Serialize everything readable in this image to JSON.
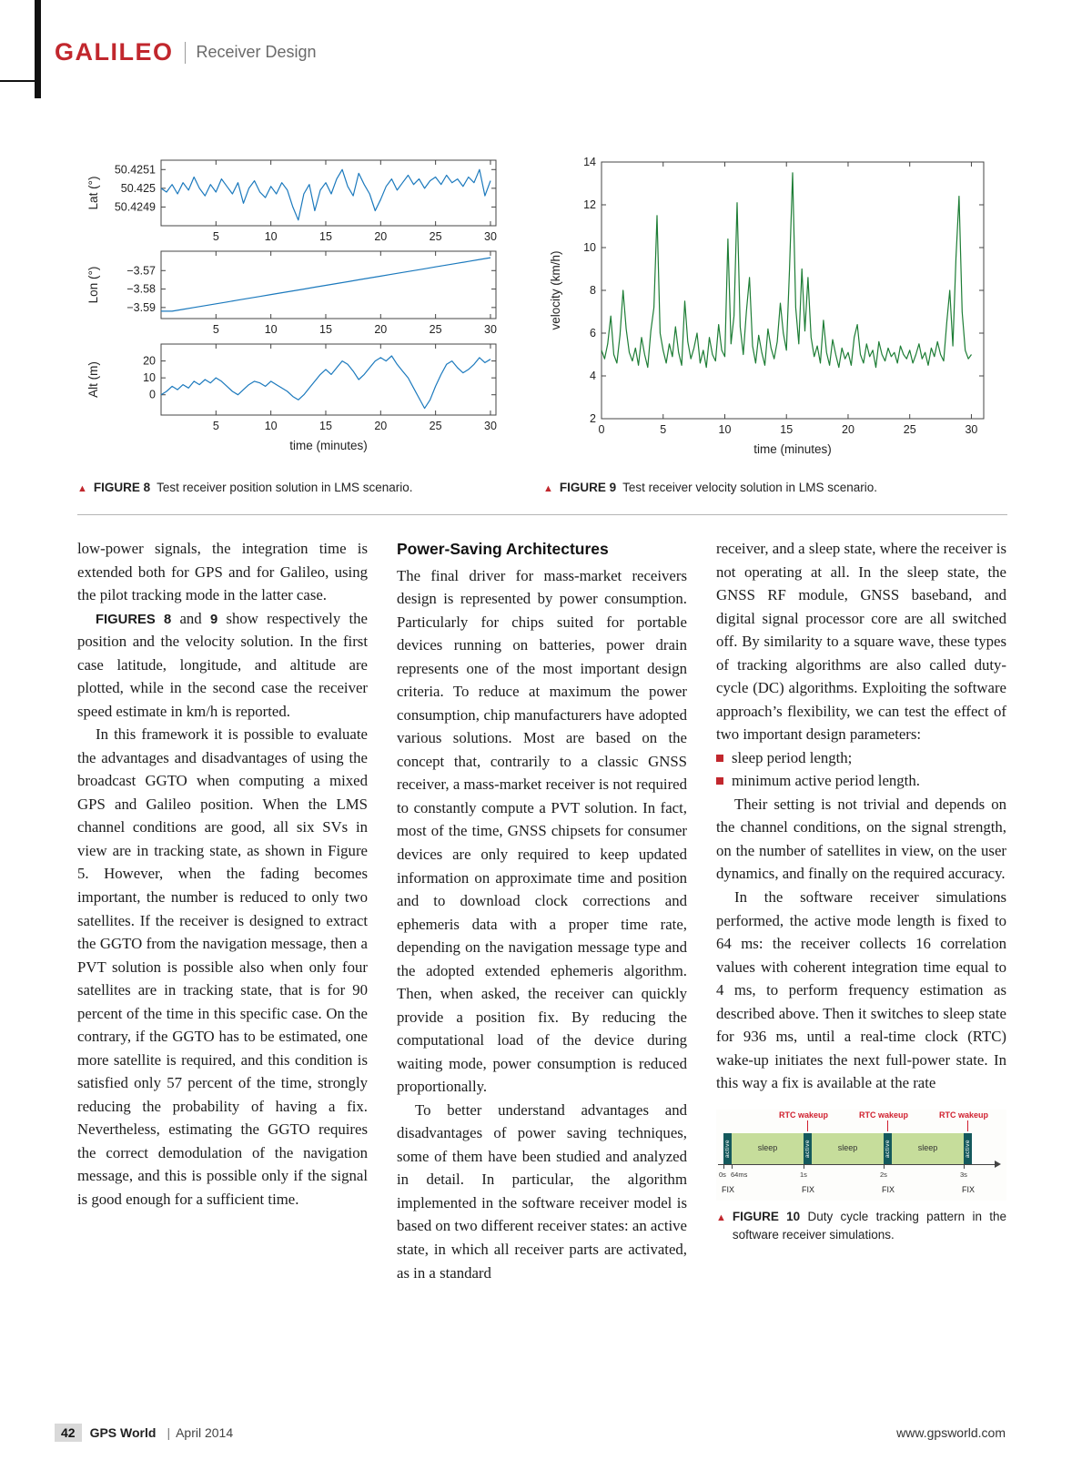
{
  "colors": {
    "accent_red": "#c1272d",
    "rtc": "#d01f2e",
    "sleep": "#c6dd9b",
    "active": "#14595c"
  },
  "header": {
    "brand": "GALILEO",
    "section": "Receiver Design"
  },
  "figures": {
    "fig8_label": "FIGURE 8",
    "fig8_text": "Test receiver position solution in LMS scenario.",
    "fig9_label": "FIGURE 9",
    "fig9_text": "Test receiver velocity solution in LMS scenario.",
    "fig10_label": "FIGURE 10",
    "fig10_text": "Duty cycle tracking pattern in the software receiver simulations."
  },
  "fig10": {
    "colors": {
      "rtc": "#d01f2e",
      "sleep": "#c6dd9b",
      "active": "#14595c"
    },
    "rtc_labels": [
      "RTC wakeup",
      "RTC wakeup",
      "RTC wakeup"
    ],
    "sleep_label": "sleep",
    "active_label": "active",
    "tick_labels": [
      "0s",
      "64ms",
      "1s",
      "2s",
      "3s"
    ],
    "fix_label": "FIX"
  },
  "article": {
    "heading2": "Power-Saving Architectures",
    "col1": {
      "p1": "low-power signals, the integration time is extended both for GPS and for Galileo, using the pilot tracking mode in the latter case.",
      "p2_ref_a": "FIGURES 8",
      "p2_and": " and ",
      "p2_ref_b": "9",
      "p2_rest": " show respectively the position and the velocity solution. In the first case latitude, longitude, and altitude are plotted, while in the second case the receiver speed estimate in km/h is reported.",
      "p3": "In this framework it is possible to evaluate the advantages and disadvantages of using the broadcast GGTO when computing a mixed GPS and Galileo position. When the LMS channel conditions are good, all six SVs in view are in tracking state, as shown in Figure 5. However, when the fading becomes important, the number is reduced to only two satellites. If the receiver is designed to extract the GGTO from the navigation message, then a PVT solution is possible also when only four satellites are in tracking state, that is for 90 percent of the time in this specific case. On the contrary, if the GGTO has to be estimated, one more satellite is required, and this condition is satisfied only 57 percent of the time, strongly reducing the probability of having a fix. Nevertheless, estimating the GGTO requires the correct demodulation of the navigation message, and this is possible only if the signal is good enough for a sufficient time."
    },
    "col2": {
      "p1": "The final driver for mass-market receivers design is represented by power consumption. Particularly for chips suited for portable devices running on batteries, power drain represents one of the most important design criteria. To reduce at maximum the power consumption, chip manufacturers have adopted various solutions. Most are based on the concept that, contrarily to a classic GNSS receiver, a mass-market receiver is not required to constantly compute a PVT solution. In fact, most of the time, GNSS chipsets for consumer devices are only required to keep updated information on approximate time and position and to download clock corrections and ephemeris data with a proper time rate, depending on the navigation message type and the adopted extended ephemeris algorithm. Then, when asked, the receiver can quickly provide a position fix. By reducing the computational load of the device during waiting mode, power consumption is reduced proportionally.",
      "p2": "To better understand advantages and disadvantages of power saving techniques, some of them have been studied and analyzed in detail. In particular, the algorithm implemented in the software receiver model is based on two different receiver states: an active state, in which all receiver parts are activated, as in a standard"
    },
    "col3": {
      "p1": "receiver, and a sleep state, where the receiver is not operating at all. In the sleep state, the GNSS RF module, GNSS baseband, and digital signal processor core are all switched off. By similarity to a square wave, these types of tracking algorithms are also called duty-cycle (DC) algorithms. Exploiting the software approach’s flexibility, we can test the effect of two important design parameters:",
      "bullets": [
        "sleep period length;",
        "minimum active period length."
      ],
      "p2": "Their setting is not trivial and depends on the channel conditions, on the signal strength, on the number of satellites in view, on the user dynamics, and finally on the required accuracy.",
      "p3": "In the software receiver simulations performed, the active mode length is fixed to 64 ms: the receiver collects 16 correlation values with coherent integration time equal to 4 ms, to perform frequency estimation as described above. Then it switches to sleep state for 936 ms, until a real-time clock (RTC) wake-up initiates the next full-power state. In this way a fix is available at the rate"
    }
  },
  "footer": {
    "page_number": "42",
    "magazine": "GPS World",
    "separator": "|",
    "issue": "April 2014",
    "website": "www.gpsworld.com"
  },
  "chart_data": [
    {
      "id": "fig8-lat",
      "type": "line",
      "color": "#1b79bd",
      "ylabel": "Lat (°)",
      "xlabel": "",
      "xlim": [
        0,
        30.5
      ],
      "ylim": [
        50.4248,
        50.42515
      ],
      "xticks": [
        5,
        10,
        15,
        20,
        25,
        30
      ],
      "yticks": [
        50.4249,
        50.425,
        50.4251
      ],
      "ytick_labels": [
        "50.4249",
        "50.425",
        "50.4251"
      ],
      "x0": 0,
      "dx": 0.5,
      "values": [
        50.425,
        50.42498,
        50.42502,
        50.42497,
        50.42503,
        50.42499,
        50.42506,
        50.425,
        50.42496,
        50.42502,
        50.42498,
        50.42505,
        50.42501,
        50.42497,
        50.42503,
        50.42492,
        50.425,
        50.42504,
        50.42498,
        50.42495,
        50.42501,
        50.42497,
        50.42503,
        50.42499,
        50.4249,
        50.42483,
        50.42497,
        50.42502,
        50.42488,
        50.42499,
        50.42503,
        50.42497,
        50.42505,
        50.4251,
        50.42501,
        50.42496,
        50.42508,
        50.42502,
        50.42497,
        50.42488,
        50.42494,
        50.42501,
        50.42505,
        50.42499,
        50.42503,
        50.42507,
        50.42502,
        50.42505,
        50.425,
        50.42504,
        50.42506,
        50.42502,
        50.42507,
        50.42503,
        50.42505,
        50.42501,
        50.42506,
        50.42503,
        50.4251,
        50.42496,
        50.42504
      ]
    },
    {
      "id": "fig8-lon",
      "type": "line",
      "color": "#1b79bd",
      "ylabel": "Lon (°)",
      "xlabel": "",
      "xlim": [
        0,
        30.5
      ],
      "ylim": [
        -3.596,
        -3.5595
      ],
      "xticks": [
        5,
        10,
        15,
        20,
        25,
        30
      ],
      "yticks": [
        -3.57,
        -3.58,
        -3.59
      ],
      "ytick_labels": [
        "−3.57",
        "−3.58",
        "−3.59"
      ],
      "x0": 0,
      "dx": 1,
      "values": [
        -3.592,
        -3.592,
        -3.591,
        -3.59,
        -3.589,
        -3.588,
        -3.587,
        -3.586,
        -3.585,
        -3.584,
        -3.583,
        -3.582,
        -3.581,
        -3.58,
        -3.579,
        -3.578,
        -3.577,
        -3.576,
        -3.575,
        -3.574,
        -3.573,
        -3.572,
        -3.571,
        -3.57,
        -3.569,
        -3.568,
        -3.567,
        -3.566,
        -3.565,
        -3.564,
        -3.563
      ]
    },
    {
      "id": "fig8-alt",
      "type": "line",
      "color": "#1b79bd",
      "ylabel": "Alt (m)",
      "xlabel": "time (minutes)",
      "xlim": [
        0,
        30.5
      ],
      "ylim": [
        -12,
        30
      ],
      "xticks": [
        5,
        10,
        15,
        20,
        25,
        30
      ],
      "yticks": [
        0,
        10,
        20
      ],
      "ytick_labels": [
        "0",
        "10",
        "20"
      ],
      "x0": 0,
      "dx": 0.5,
      "values": [
        0,
        2,
        5,
        3,
        6,
        4,
        8,
        6,
        9,
        7,
        10,
        8,
        5,
        2,
        0,
        3,
        6,
        8,
        7,
        5,
        8,
        6,
        4,
        2,
        -1,
        -3,
        0,
        4,
        8,
        12,
        15,
        12,
        16,
        20,
        18,
        14,
        9,
        12,
        16,
        20,
        22,
        20,
        23,
        18,
        14,
        10,
        4,
        -2,
        -8,
        -3,
        5,
        12,
        18,
        20,
        16,
        13,
        15,
        18,
        22,
        19,
        21
      ]
    },
    {
      "id": "fig9-vel",
      "type": "line",
      "color": "#1d7d35",
      "ylabel": "velocity (km/h)",
      "xlabel": "time (minutes)",
      "xlim": [
        0,
        31
      ],
      "ylim": [
        2,
        14
      ],
      "xticks": [
        0,
        5,
        10,
        15,
        20,
        25,
        30
      ],
      "yticks": [
        2,
        4,
        6,
        8,
        10,
        12,
        14
      ],
      "ytick_labels": [
        "2",
        "4",
        "6",
        "8",
        "10",
        "12",
        "14"
      ],
      "x0": 0,
      "dx": 0.25,
      "values": [
        5.2,
        4.8,
        5.5,
        6.8,
        5.0,
        4.6,
        5.9,
        8.0,
        6.2,
        5.1,
        4.7,
        5.3,
        4.5,
        5.8,
        5.0,
        4.4,
        6.1,
        7.2,
        11.5,
        6.0,
        5.2,
        4.6,
        5.5,
        4.9,
        6.3,
        5.1,
        4.5,
        7.5,
        5.6,
        4.8,
        5.3,
        6.0,
        4.6,
        5.2,
        4.4,
        5.8,
        5.0,
        4.7,
        6.4,
        5.2,
        4.9,
        10.4,
        5.5,
        6.8,
        12.1,
        6.3,
        5.0,
        7.0,
        8.6,
        5.4,
        4.6,
        5.9,
        5.1,
        4.5,
        6.2,
        5.3,
        4.8,
        5.6,
        7.4,
        6.0,
        5.2,
        9.0,
        13.5,
        7.2,
        5.5,
        9.0,
        6.1,
        8.6,
        5.8,
        4.9,
        5.4,
        4.6,
        6.6,
        5.1,
        4.5,
        5.7,
        5.0,
        4.4,
        5.3,
        4.8,
        5.1,
        4.5,
        5.8,
        6.4,
        5.0,
        4.6,
        5.5,
        4.9,
        5.2,
        4.4,
        5.6,
        5.0,
        4.7,
        5.3,
        4.9,
        5.1,
        4.6,
        5.4,
        5.0,
        4.8,
        5.2,
        4.6,
        5.0,
        5.5,
        4.8,
        5.1,
        4.5,
        5.3,
        4.9,
        5.6,
        5.0,
        4.7,
        6.5,
        8.0,
        5.4,
        9.5,
        12.4,
        7.0,
        5.2,
        4.8,
        5.0
      ]
    }
  ]
}
